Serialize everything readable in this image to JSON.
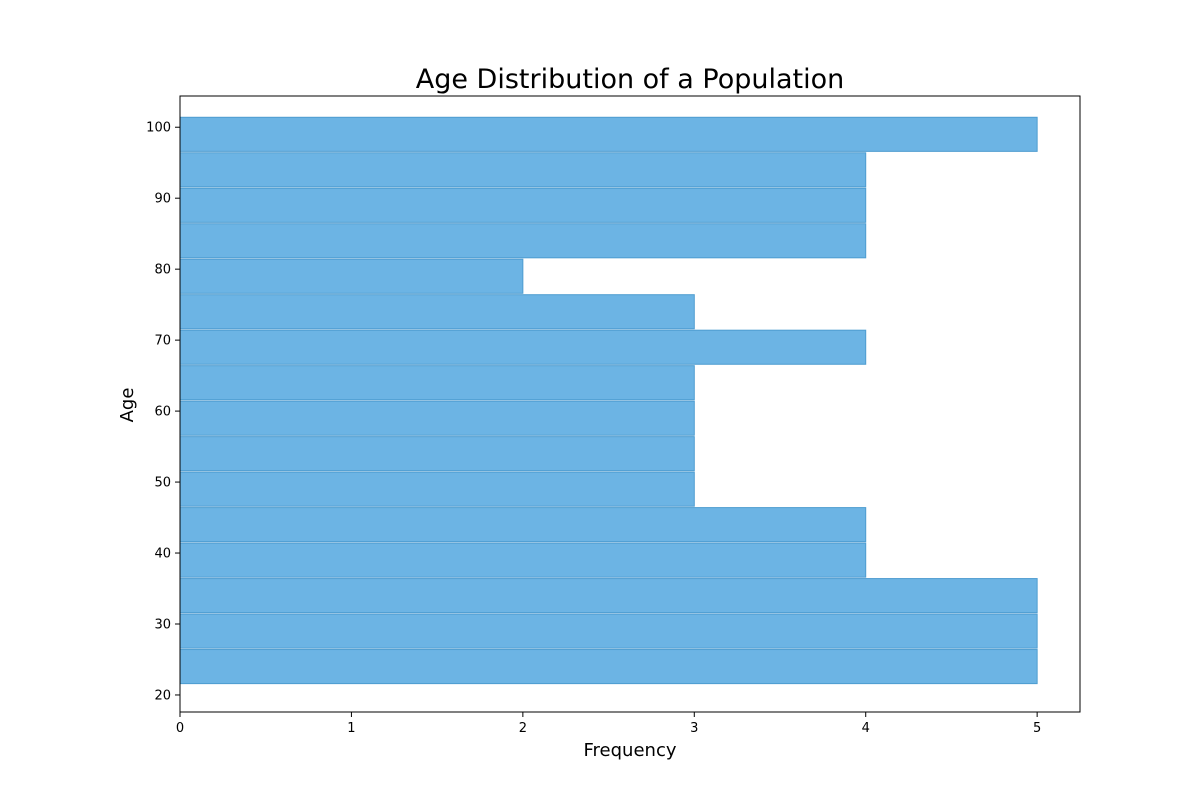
{
  "chart_data": {
    "type": "bar",
    "orientation": "horizontal",
    "title": "Age Distribution of a Population",
    "xlabel": "Frequency",
    "ylabel": "Age",
    "xlim": [
      0,
      5.25
    ],
    "ylim": [
      17.6,
      104.4
    ],
    "x_ticks": [
      "0",
      "1",
      "2",
      "3",
      "4",
      "5"
    ],
    "y_ticks": [
      "20",
      "30",
      "40",
      "50",
      "60",
      "70",
      "80",
      "90",
      "100"
    ],
    "bin_edges": [
      21.5,
      26.5,
      31.5,
      36.5,
      41.5,
      46.5,
      51.5,
      56.5,
      61.5,
      66.5,
      71.5,
      76.5,
      81.5,
      86.5,
      91.5,
      96.5,
      101.5
    ],
    "values": [
      5,
      5,
      5,
      4,
      4,
      3,
      3,
      3,
      3,
      4,
      3,
      2,
      4,
      4,
      4,
      5
    ],
    "grid": false,
    "bar_color": "#6cb4e4",
    "bar_edge_color": "#4d9cd0"
  }
}
